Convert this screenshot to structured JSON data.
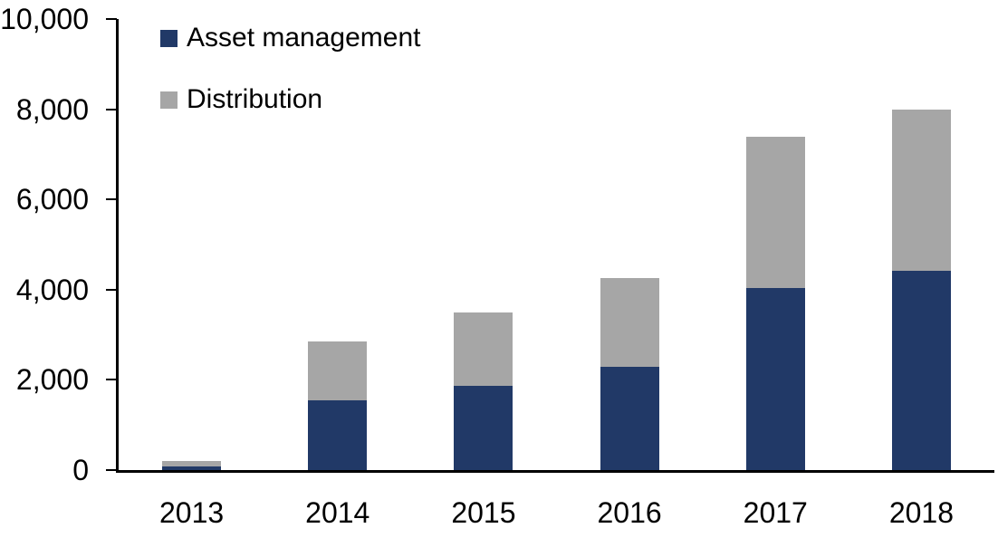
{
  "chart_data": {
    "type": "bar",
    "stacked": true,
    "title": "",
    "xlabel": "",
    "ylabel": "",
    "categories": [
      "2013",
      "2014",
      "2015",
      "2016",
      "2017",
      "2018"
    ],
    "series": [
      {
        "name": "Asset management",
        "color": "#213967",
        "values": [
          80,
          1550,
          1870,
          2290,
          4040,
          4410
        ]
      },
      {
        "name": "Distribution",
        "color": "#A6A6A6",
        "values": [
          120,
          1310,
          1630,
          1960,
          3340,
          3590
        ]
      }
    ],
    "totals": [
      200,
      2860,
      3500,
      4250,
      7380,
      8000
    ],
    "ylim": [
      0,
      10000
    ],
    "yticks": [
      0,
      2000,
      4000,
      6000,
      8000,
      10000
    ],
    "ytick_labels": [
      "0",
      "2,000",
      "4,000",
      "6,000",
      "8,000",
      "10,000"
    ],
    "grid": false,
    "legend_position": "top-left-inside"
  },
  "colors": {
    "asset_management": "#213967",
    "distribution": "#A6A6A6",
    "axis": "#000000",
    "background": "#FFFFFF"
  }
}
